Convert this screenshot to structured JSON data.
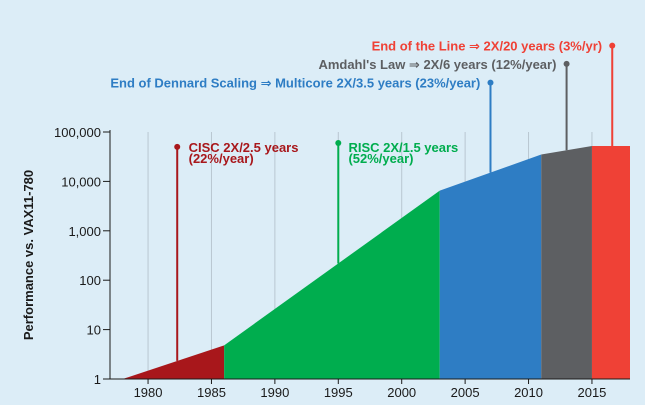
{
  "chart_data": {
    "type": "area",
    "title": "",
    "xlabel": "",
    "ylabel": "Performance vs. VAX11-780",
    "y_scale": "log",
    "ylim": [
      1,
      100000
    ],
    "xlim": [
      1977,
      2018
    ],
    "grid": "vertical lines at x ticks",
    "x_ticks": [
      1980,
      1985,
      1990,
      1995,
      2000,
      2005,
      2010,
      2015
    ],
    "x_tick_labels": [
      "1980",
      "1985",
      "1990",
      "1995",
      "2000",
      "2005",
      "2010",
      "2015"
    ],
    "y_ticks": [
      1,
      10,
      100,
      1000,
      10000,
      100000
    ],
    "y_tick_labels": [
      "1",
      "10",
      "100",
      "1,000",
      "10,000",
      "100,000"
    ],
    "colors": {
      "cisc": "#a8171b",
      "risc": "#00ad4e",
      "multicore": "#2e7dc4",
      "amdahl": "#5d5f62",
      "end": "#ef4136",
      "background": "#dcedf7"
    },
    "series": [
      {
        "key": "cisc",
        "label": "CISC 2X/2.5 years",
        "rate": "(22%/year)",
        "color": "#a8171b",
        "points": [
          [
            1978,
            1
          ],
          [
            1986,
            4.8
          ]
        ],
        "marker": {
          "x": 1982.3,
          "top_y": 50000
        },
        "text_x": 1983.2,
        "text_y1": 50000,
        "text_y2": 30000
      },
      {
        "key": "risc",
        "label": "RISC 2X/1.5 years",
        "rate": "(52%/year)",
        "color": "#00ad4e",
        "points": [
          [
            1986,
            4.8
          ],
          [
            2003,
            6500
          ]
        ],
        "marker": {
          "x": 1995,
          "top_y": 60000
        },
        "text_x": 1995.8,
        "text_y1": 50000,
        "text_y2": 30000
      },
      {
        "key": "multicore",
        "label": "End of Dennard Scaling ⇒ Multicore 2X/3.5 years (23%/year)",
        "color": "#2e7dc4",
        "points": [
          [
            2003,
            6500
          ],
          [
            2011,
            35000
          ]
        ],
        "marker": {
          "x": 2007,
          "top_y": 1000000
        },
        "text_right_x": 2006.2,
        "text_y": 1000000
      },
      {
        "key": "amdahl",
        "label": "Amdahl's Law ⇒ 2X/6 years (12%/year)",
        "color": "#5d5f62",
        "points": [
          [
            2011,
            35000
          ],
          [
            2015,
            52000
          ]
        ],
        "marker": {
          "x": 2013,
          "top_y": 2400000
        },
        "text_right_x": 2012.2,
        "text_y": 2400000
      },
      {
        "key": "end",
        "label": "End of the Line ⇒ 2X/20 years (3%/yr)",
        "color": "#ef4136",
        "points": [
          [
            2015,
            52000
          ],
          [
            2018,
            52000
          ]
        ],
        "marker": {
          "x": 2016.6,
          "top_y": 5600000
        },
        "text_right_x": 2015.8,
        "text_y": 5600000
      }
    ]
  }
}
